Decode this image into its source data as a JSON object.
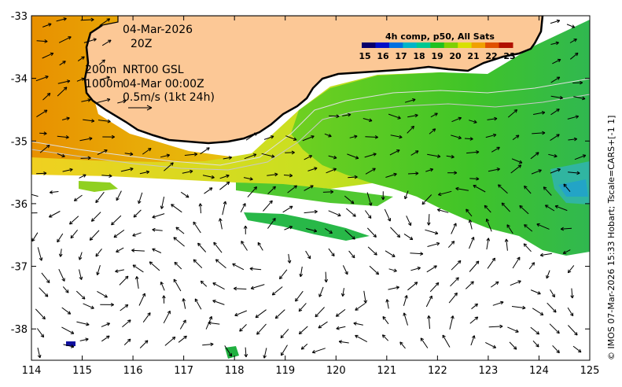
{
  "annotations": {
    "date": "04-Mar-2026",
    "hour": "20Z",
    "iso_shallow": "200m",
    "iso_deep": "1000m",
    "product": "NRT00 GSL",
    "product_time": "04-Mar 00:00Z",
    "scale_note": "0.5m/s (1kt 24h)"
  },
  "colorbar": {
    "title": "4h comp, p50, All Sats",
    "ticks": [
      "15",
      "16",
      "17",
      "18",
      "19",
      "20",
      "21",
      "22",
      "23"
    ],
    "colors": [
      "#08006a",
      "#0010c8",
      "#0070e0",
      "#00b4c8",
      "#00c890",
      "#20c020",
      "#80d000",
      "#d8e000",
      "#f0a000",
      "#e05000",
      "#b01000"
    ]
  },
  "side_text": "© IMOS 07-Mar-2026 15:33 Hobart; Tscale=CARS+[-1 1]",
  "axes": {
    "x_ticks": [
      "114",
      "115",
      "116",
      "117",
      "118",
      "119",
      "120",
      "121",
      "122",
      "123",
      "124",
      "125"
    ],
    "y_ticks": [
      "-33",
      "-34",
      "-35",
      "-36",
      "-37",
      "-38"
    ],
    "lon_range": [
      114,
      125
    ],
    "lat_range": [
      -38.5,
      -33
    ]
  },
  "colors": {
    "land": "#fcc896",
    "sst_warm": "#e8b000",
    "sst_mid": "#a8d820",
    "sst_cool": "#30c030",
    "coast": "#000000"
  }
}
